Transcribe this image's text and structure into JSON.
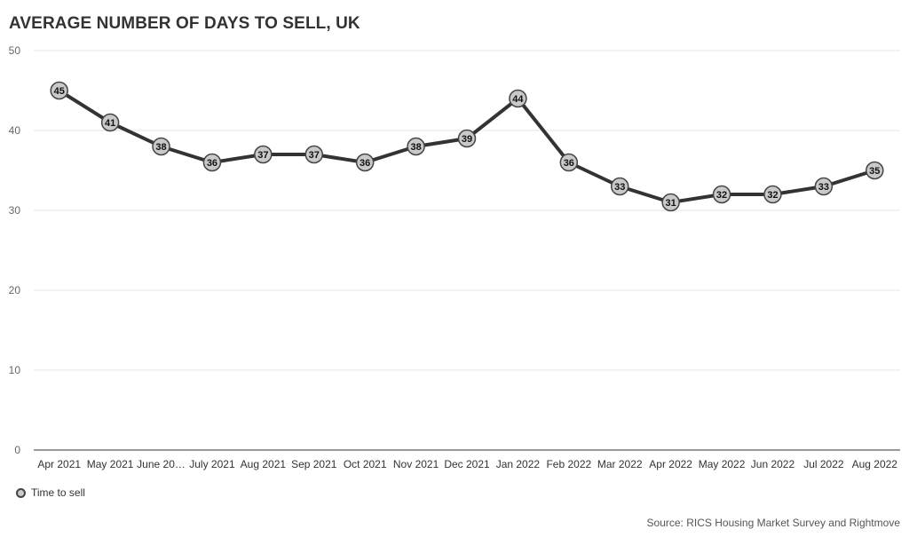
{
  "chart_data": {
    "type": "line",
    "title": "AVERAGE NUMBER OF DAYS TO SELL, UK",
    "categories": [
      "Apr 2021",
      "May 2021",
      "June 20…",
      "July 2021",
      "Aug 2021",
      "Sep 2021",
      "Oct 2021",
      "Nov 2021",
      "Dec 2021",
      "Jan 2022",
      "Feb 2022",
      "Mar 2022",
      "Apr 2022",
      "May 2022",
      "Jun 2022",
      "Jul 2022",
      "Aug 2022"
    ],
    "series": [
      {
        "name": "Time to sell",
        "values": [
          45,
          41,
          38,
          36,
          37,
          37,
          36,
          38,
          39,
          44,
          36,
          33,
          31,
          32,
          32,
          33,
          35
        ]
      }
    ],
    "ylim": [
      0,
      50
    ],
    "yticks": [
      0,
      10,
      20,
      30,
      40,
      50
    ],
    "grid": true,
    "legend": "bottom-left",
    "source": "Source: RICS Housing Market Survey and Rightmove",
    "colors": {
      "line": "#333333",
      "marker_fill": "#c9c9c9",
      "grid": "#e6e6e6"
    }
  }
}
